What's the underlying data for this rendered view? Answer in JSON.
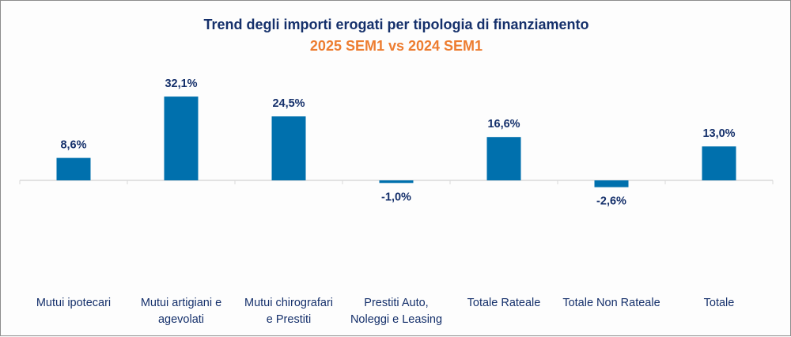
{
  "chart_data": {
    "type": "bar",
    "title": "Trend degli importi erogati per tipologia di finanziamento",
    "subtitle": "2025 SEM1 vs 2024 SEM1",
    "categories": [
      [
        "Mutui ipotecari"
      ],
      [
        "Mutui artigiani e",
        "agevolati"
      ],
      [
        "Mutui chirografari",
        "e Prestiti"
      ],
      [
        "Prestiti Auto,",
        "Noleggi e Leasing"
      ],
      [
        "Totale Rateale"
      ],
      [
        "Totale Non Rateale"
      ],
      [
        "Totale"
      ]
    ],
    "values": [
      8.6,
      32.1,
      24.5,
      -1.0,
      16.6,
      -2.6,
      13.0
    ],
    "data_labels": [
      "8,6%",
      "32,1%",
      "24,5%",
      "-1,0%",
      "16,6%",
      "-2,6%",
      "13,0%"
    ],
    "xlabel": "",
    "ylabel": "",
    "grid": false,
    "legend": "none",
    "colors": {
      "bar": "#0070ad",
      "title": "#15306b",
      "subtitle": "#ed7d31",
      "axis": "#d9d9d9"
    }
  }
}
